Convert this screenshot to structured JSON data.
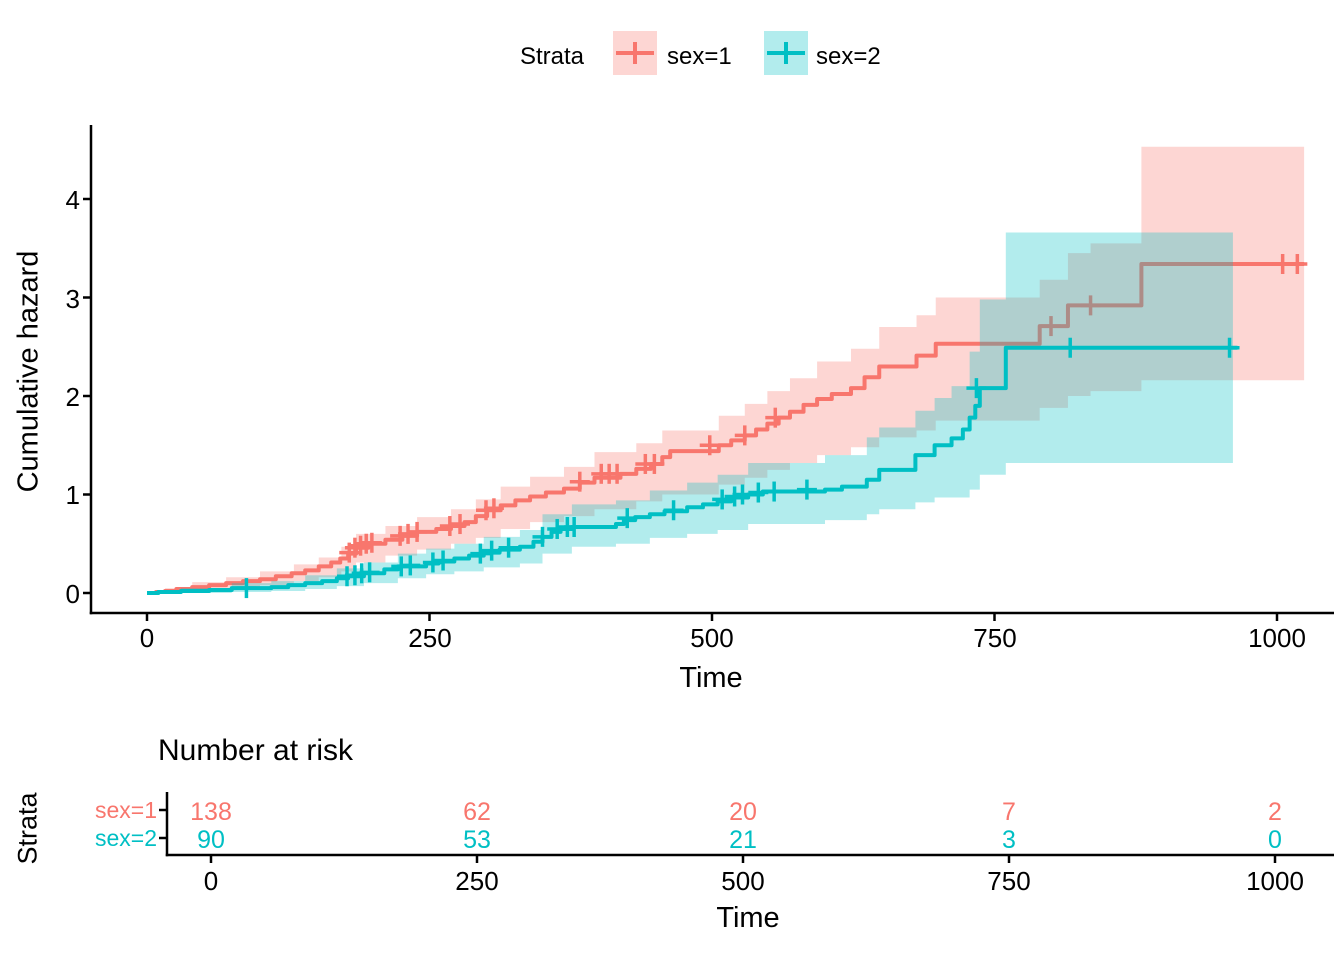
{
  "legend": {
    "title": "Strata",
    "items": [
      {
        "label": "sex=1",
        "color": "#F8766D"
      },
      {
        "label": "sex=2",
        "color": "#00BFC4"
      }
    ]
  },
  "main_plot": {
    "ylabel": "Cumulative hazard",
    "xlabel": "Time",
    "yticks": [
      "0",
      "1",
      "2",
      "3",
      "4"
    ],
    "xticks": [
      "0",
      "250",
      "500",
      "750",
      "1000"
    ]
  },
  "risk_table": {
    "title": "Number at risk",
    "ylabel": "Strata",
    "xlabel": "Time",
    "xticks": [
      "0",
      "250",
      "500",
      "750",
      "1000"
    ],
    "rows": [
      {
        "label": "sex=1",
        "color": "#F8766D",
        "values": [
          "138",
          "62",
          "20",
          "7",
          "2"
        ]
      },
      {
        "label": "sex=2",
        "color": "#00BFC4",
        "values": [
          "90",
          "53",
          "21",
          "3",
          "0"
        ]
      }
    ]
  },
  "chart_data": {
    "type": "line",
    "subtype": "step-cumulative-hazard",
    "title": "",
    "xlabel": "Time",
    "ylabel": "Cumulative hazard",
    "xlim": [
      0,
      1000
    ],
    "ylim": [
      0,
      4
    ],
    "xticks": [
      0,
      250,
      500,
      750,
      1000
    ],
    "yticks": [
      0,
      1,
      2,
      3,
      4
    ],
    "grid": false,
    "legend_position": "top",
    "series": [
      {
        "name": "sex=1",
        "color": "#F8766D",
        "fill": "rgba(248,118,109,0.30)",
        "steps": [
          [
            0,
            0
          ],
          [
            8,
            0.01
          ],
          [
            16,
            0.02
          ],
          [
            26,
            0.04
          ],
          [
            40,
            0.06
          ],
          [
            55,
            0.08
          ],
          [
            70,
            0.1
          ],
          [
            85,
            0.12
          ],
          [
            100,
            0.14
          ],
          [
            114,
            0.17
          ],
          [
            128,
            0.2
          ],
          [
            140,
            0.23
          ],
          [
            152,
            0.27
          ],
          [
            163,
            0.31
          ],
          [
            171,
            0.35
          ],
          [
            178,
            0.4
          ],
          [
            185,
            0.46
          ],
          [
            196,
            0.5
          ],
          [
            211,
            0.54
          ],
          [
            226,
            0.58
          ],
          [
            239,
            0.62
          ],
          [
            256,
            0.65
          ],
          [
            269,
            0.68
          ],
          [
            281,
            0.72
          ],
          [
            291,
            0.78
          ],
          [
            301,
            0.84
          ],
          [
            313,
            0.89
          ],
          [
            326,
            0.94
          ],
          [
            339,
            0.98
          ],
          [
            353,
            1.02
          ],
          [
            369,
            1.06
          ],
          [
            383,
            1.12
          ],
          [
            396,
            1.17
          ],
          [
            419,
            1.21
          ],
          [
            433,
            1.26
          ],
          [
            446,
            1.31
          ],
          [
            456,
            1.38
          ],
          [
            463,
            1.44
          ],
          [
            506,
            1.5
          ],
          [
            517,
            1.55
          ],
          [
            529,
            1.6
          ],
          [
            539,
            1.66
          ],
          [
            549,
            1.72
          ],
          [
            559,
            1.78
          ],
          [
            569,
            1.84
          ],
          [
            581,
            1.91
          ],
          [
            593,
            1.97
          ],
          [
            606,
            2.02
          ],
          [
            623,
            2.08
          ],
          [
            635,
            2.19
          ],
          [
            648,
            2.3
          ],
          [
            681,
            2.41
          ],
          [
            698,
            2.53
          ],
          [
            790,
            2.71
          ],
          [
            815,
            2.92
          ],
          [
            880,
            3.34
          ],
          [
            1024,
            3.34
          ]
        ],
        "censors": [
          [
            179,
            0.41
          ],
          [
            184,
            0.46
          ],
          [
            189,
            0.48
          ],
          [
            194,
            0.5
          ],
          [
            199,
            0.51
          ],
          [
            224,
            0.58
          ],
          [
            231,
            0.6
          ],
          [
            239,
            0.62
          ],
          [
            268,
            0.68
          ],
          [
            277,
            0.7
          ],
          [
            300,
            0.84
          ],
          [
            307,
            0.86
          ],
          [
            383,
            1.13
          ],
          [
            402,
            1.21
          ],
          [
            409,
            1.21
          ],
          [
            416,
            1.21
          ],
          [
            441,
            1.31
          ],
          [
            449,
            1.31
          ],
          [
            498,
            1.5
          ],
          [
            529,
            1.6
          ],
          [
            556,
            1.78
          ],
          [
            800,
            2.71
          ],
          [
            835,
            2.92
          ],
          [
            1005,
            3.34
          ],
          [
            1018,
            3.34
          ]
        ],
        "ribbon": [
          [
            0,
            0,
            0
          ],
          [
            16,
            0,
            0.05
          ],
          [
            40,
            0.02,
            0.11
          ],
          [
            70,
            0.05,
            0.16
          ],
          [
            100,
            0.08,
            0.22
          ],
          [
            130,
            0.12,
            0.29
          ],
          [
            152,
            0.16,
            0.36
          ],
          [
            172,
            0.22,
            0.47
          ],
          [
            185,
            0.31,
            0.6
          ],
          [
            211,
            0.38,
            0.68
          ],
          [
            239,
            0.44,
            0.77
          ],
          [
            269,
            0.5,
            0.85
          ],
          [
            291,
            0.56,
            0.95
          ],
          [
            313,
            0.65,
            1.08
          ],
          [
            339,
            0.72,
            1.18
          ],
          [
            369,
            0.78,
            1.28
          ],
          [
            396,
            0.85,
            1.43
          ],
          [
            433,
            0.93,
            1.52
          ],
          [
            456,
            1.0,
            1.65
          ],
          [
            506,
            1.1,
            1.8
          ],
          [
            529,
            1.17,
            1.92
          ],
          [
            549,
            1.25,
            2.05
          ],
          [
            569,
            1.32,
            2.18
          ],
          [
            593,
            1.4,
            2.35
          ],
          [
            623,
            1.48,
            2.48
          ],
          [
            648,
            1.58,
            2.7
          ],
          [
            681,
            1.65,
            2.82
          ],
          [
            698,
            1.75,
            3.0
          ],
          [
            790,
            1.88,
            3.18
          ],
          [
            815,
            2.0,
            3.45
          ],
          [
            835,
            2.05,
            3.55
          ],
          [
            880,
            2.16,
            4.53
          ],
          [
            1024,
            2.16,
            4.53
          ]
        ]
      },
      {
        "name": "sex=2",
        "color": "#00BFC4",
        "fill": "rgba(0,191,196,0.30)",
        "steps": [
          [
            0,
            0
          ],
          [
            10,
            0.01
          ],
          [
            30,
            0.02
          ],
          [
            55,
            0.03
          ],
          [
            75,
            0.05
          ],
          [
            110,
            0.06
          ],
          [
            125,
            0.08
          ],
          [
            140,
            0.1
          ],
          [
            155,
            0.12
          ],
          [
            168,
            0.15
          ],
          [
            178,
            0.17
          ],
          [
            192,
            0.2
          ],
          [
            210,
            0.24
          ],
          [
            222,
            0.27
          ],
          [
            247,
            0.3
          ],
          [
            258,
            0.32
          ],
          [
            272,
            0.35
          ],
          [
            285,
            0.38
          ],
          [
            298,
            0.41
          ],
          [
            312,
            0.44
          ],
          [
            330,
            0.47
          ],
          [
            342,
            0.52
          ],
          [
            350,
            0.57
          ],
          [
            358,
            0.62
          ],
          [
            366,
            0.65
          ],
          [
            376,
            0.67
          ],
          [
            415,
            0.7
          ],
          [
            422,
            0.74
          ],
          [
            432,
            0.77
          ],
          [
            445,
            0.8
          ],
          [
            458,
            0.83
          ],
          [
            478,
            0.87
          ],
          [
            492,
            0.9
          ],
          [
            505,
            0.93
          ],
          [
            517,
            0.97
          ],
          [
            532,
            1.0
          ],
          [
            545,
            1.03
          ],
          [
            600,
            1.05
          ],
          [
            615,
            1.08
          ],
          [
            637,
            1.15
          ],
          [
            648,
            1.25
          ],
          [
            680,
            1.4
          ],
          [
            697,
            1.5
          ],
          [
            712,
            1.57
          ],
          [
            722,
            1.66
          ],
          [
            728,
            1.78
          ],
          [
            733,
            1.9
          ],
          [
            737,
            2.08
          ],
          [
            760,
            2.49
          ],
          [
            965,
            2.49
          ]
        ],
        "censors": [
          [
            88,
            0.05
          ],
          [
            177,
            0.17
          ],
          [
            184,
            0.18
          ],
          [
            190,
            0.2
          ],
          [
            197,
            0.21
          ],
          [
            225,
            0.27
          ],
          [
            233,
            0.28
          ],
          [
            253,
            0.31
          ],
          [
            262,
            0.33
          ],
          [
            295,
            0.4
          ],
          [
            305,
            0.43
          ],
          [
            320,
            0.46
          ],
          [
            350,
            0.57
          ],
          [
            363,
            0.65
          ],
          [
            372,
            0.67
          ],
          [
            378,
            0.67
          ],
          [
            425,
            0.76
          ],
          [
            466,
            0.84
          ],
          [
            509,
            0.95
          ],
          [
            520,
            0.98
          ],
          [
            527,
            1.0
          ],
          [
            541,
            1.02
          ],
          [
            555,
            1.03
          ],
          [
            584,
            1.05
          ],
          [
            734,
            2.08
          ],
          [
            817,
            2.49
          ],
          [
            958,
            2.49
          ]
        ],
        "ribbon": [
          [
            0,
            0,
            0
          ],
          [
            30,
            0,
            0.05
          ],
          [
            75,
            0.01,
            0.1
          ],
          [
            110,
            0.02,
            0.12
          ],
          [
            140,
            0.04,
            0.18
          ],
          [
            168,
            0.07,
            0.25
          ],
          [
            192,
            0.1,
            0.31
          ],
          [
            222,
            0.15,
            0.4
          ],
          [
            247,
            0.19,
            0.45
          ],
          [
            272,
            0.22,
            0.5
          ],
          [
            298,
            0.26,
            0.57
          ],
          [
            330,
            0.3,
            0.64
          ],
          [
            350,
            0.4,
            0.8
          ],
          [
            376,
            0.47,
            0.9
          ],
          [
            415,
            0.5,
            0.94
          ],
          [
            445,
            0.56,
            1.04
          ],
          [
            478,
            0.6,
            1.12
          ],
          [
            505,
            0.64,
            1.2
          ],
          [
            532,
            0.7,
            1.32
          ],
          [
            600,
            0.74,
            1.4
          ],
          [
            637,
            0.8,
            1.58
          ],
          [
            648,
            0.85,
            1.68
          ],
          [
            680,
            0.92,
            1.85
          ],
          [
            697,
            0.97,
            1.98
          ],
          [
            712,
            0.97,
            2.1
          ],
          [
            728,
            1.05,
            2.45
          ],
          [
            737,
            1.2,
            2.98
          ],
          [
            760,
            1.32,
            3.66
          ],
          [
            961,
            1.32,
            3.66
          ]
        ]
      }
    ],
    "number_at_risk": {
      "times": [
        0,
        250,
        500,
        750,
        1000
      ],
      "sex1": [
        138,
        62,
        20,
        7,
        2
      ],
      "sex2": [
        90,
        53,
        21,
        3,
        0
      ]
    }
  }
}
